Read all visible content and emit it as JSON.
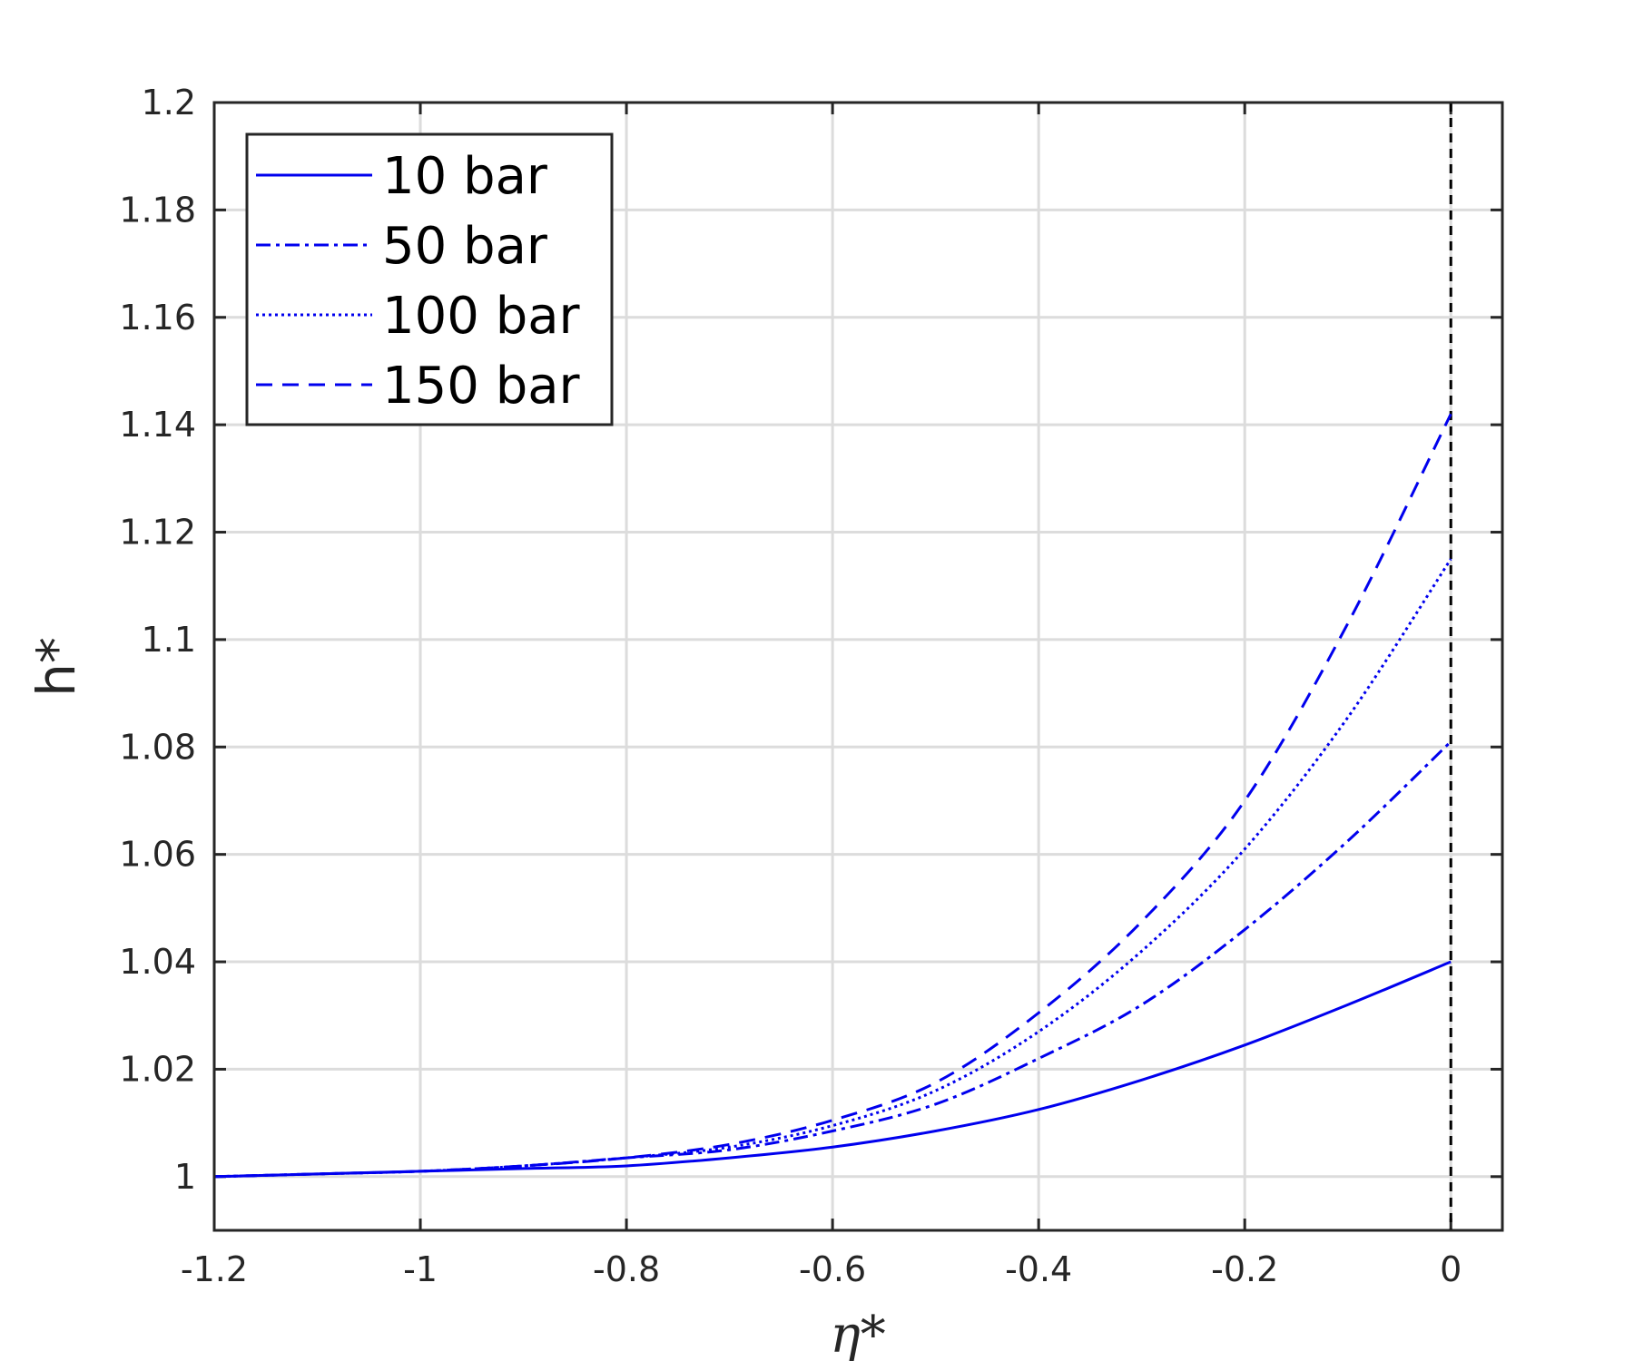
{
  "chart_data": {
    "type": "line",
    "xlabel": "η*",
    "ylabel": "h*",
    "xlim": [
      -1.2,
      0.05
    ],
    "ylim": [
      0.99,
      1.2
    ],
    "xticks": [
      -1.2,
      -1,
      -0.8,
      -0.6,
      -0.4,
      -0.2,
      0
    ],
    "xtick_labels": [
      "-1.2",
      "-1",
      "-0.8",
      "-0.6",
      "-0.4",
      "-0.2",
      "0"
    ],
    "yticks": [
      1,
      1.02,
      1.04,
      1.06,
      1.08,
      1.1,
      1.12,
      1.14,
      1.16,
      1.18,
      1.2
    ],
    "ytick_labels": [
      "1",
      "1.02",
      "1.04",
      "1.06",
      "1.08",
      "1.1",
      "1.12",
      "1.14",
      "1.16",
      "1.18",
      "1.2"
    ],
    "grid": true,
    "legend_position": "top-left",
    "reference_line": {
      "x": 0,
      "style": "dashed",
      "color": "#000000"
    },
    "x": [
      -1.2,
      -1.1,
      -1.0,
      -0.9,
      -0.8,
      -0.7,
      -0.6,
      -0.5,
      -0.4,
      -0.3,
      -0.2,
      -0.1,
      0
    ],
    "series": [
      {
        "name": "10 bar",
        "style": "solid",
        "color": "#0000ee",
        "values": [
          1.0,
          1.0005,
          1.001,
          1.0015,
          1.002,
          1.0035,
          1.0055,
          1.0085,
          1.0125,
          1.018,
          1.0245,
          1.032,
          1.04
        ]
      },
      {
        "name": "50 bar",
        "style": "dashdot",
        "color": "#0000ee",
        "values": [
          1.0,
          1.0005,
          1.001,
          1.002,
          1.0035,
          1.005,
          1.0085,
          1.0135,
          1.022,
          1.032,
          1.046,
          1.0625,
          1.081
        ]
      },
      {
        "name": "100 bar",
        "style": "dotted",
        "color": "#0000ee",
        "values": [
          1.0,
          1.0005,
          1.001,
          1.002,
          1.0035,
          1.0055,
          1.0095,
          1.016,
          1.027,
          1.042,
          1.061,
          1.0855,
          1.115
        ]
      },
      {
        "name": "150 bar",
        "style": "dashed",
        "color": "#0000ee",
        "values": [
          1.0,
          1.0005,
          1.001,
          1.002,
          1.0035,
          1.006,
          1.0105,
          1.0175,
          1.0305,
          1.0475,
          1.07,
          1.103,
          1.142
        ]
      }
    ]
  }
}
